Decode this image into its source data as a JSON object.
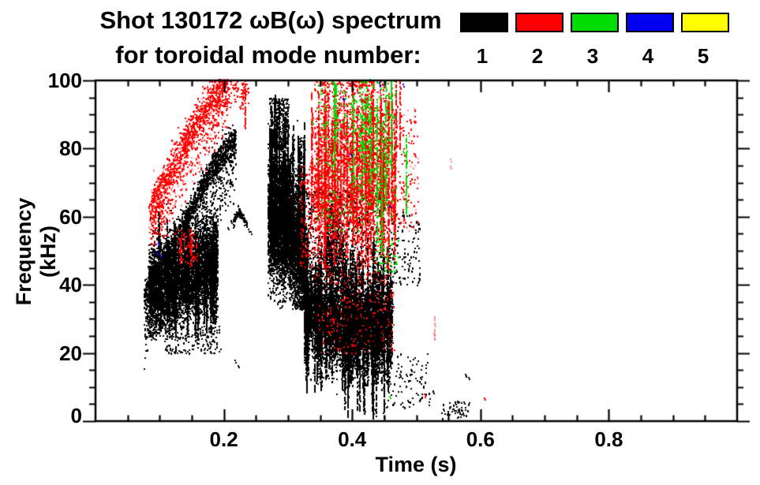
{
  "title": {
    "line1": "Shot 130172 ωB(ω) spectrum",
    "line2": "for toroidal mode number:"
  },
  "legend": {
    "position": "top-right",
    "entries": [
      {
        "label": "1",
        "color": "#000000"
      },
      {
        "label": "2",
        "color": "#ff0000"
      },
      {
        "label": "3",
        "color": "#00dc00"
      },
      {
        "label": "4",
        "color": "#0000f0"
      },
      {
        "label": "5",
        "color": "#ffff00"
      }
    ]
  },
  "chart_data": {
    "type": "scatter",
    "title": "Shot 130172 ωB(ω) spectrum for toroidal mode number: 1 2 3 4 5",
    "xlabel": "Time (s)",
    "ylabel": "Frequency (kHz)",
    "xlim": [
      0,
      1.0
    ],
    "ylim": [
      0,
      100
    ],
    "grid": false,
    "xticks": {
      "major": [
        0.2,
        0.4,
        0.6,
        0.8
      ],
      "labels": [
        "0.2",
        "0.4",
        "0.6",
        "0.8"
      ],
      "minor_step": 0.05
    },
    "yticks": {
      "major": [
        0,
        20,
        40,
        60,
        80,
        100
      ],
      "labels": [
        "0",
        "20",
        "40",
        "60",
        "80",
        "100"
      ],
      "minor_step": 5
    },
    "units": {
      "x": "s",
      "y": "kHz"
    },
    "series": [
      {
        "name": "n=1",
        "mode": 1,
        "color": "#000000",
        "clusters": [
          {
            "type": "chirp",
            "path": [
              [
                0.075,
                37
              ],
              [
                0.1,
                44
              ],
              [
                0.13,
                55
              ],
              [
                0.16,
                67
              ],
              [
                0.19,
                77
              ],
              [
                0.218,
                83
              ]
            ],
            "n": 2200,
            "sigma": 2.2,
            "tail_prob": 0.3,
            "tail_drop": 16
          },
          {
            "type": "band",
            "path": [
              [
                0.082,
                38
              ],
              [
                0.13,
                42
              ],
              [
                0.19,
                47
              ]
            ],
            "sigma": 6.5,
            "n": 4500,
            "fmin": 24
          },
          {
            "type": "streaks",
            "t": [
              0.095,
              0.19
            ],
            "count": 40,
            "ftop": [
              48,
              62
            ],
            "fbot": [
              24,
              36
            ]
          },
          {
            "type": "box",
            "t": [
              0.105,
              0.195
            ],
            "f": [
              20,
              28
            ],
            "n": 150
          },
          {
            "type": "chirp",
            "path": [
              [
                0.214,
                58.5
              ],
              [
                0.222,
                62
              ],
              [
                0.235,
                58
              ]
            ],
            "n": 90,
            "sigma": 0.7,
            "tail_prob": 0,
            "tail_drop": 0
          },
          {
            "type": "points",
            "pts": [
              [
                0.238,
                56.5
              ],
              [
                0.241,
                55.8
              ],
              [
                0.205,
                57
              ],
              [
                0.21,
                59
              ],
              [
                0.217,
                18
              ],
              [
                0.222,
                16.5
              ]
            ]
          },
          {
            "type": "band",
            "path": [
              [
                0.268,
                60
              ],
              [
                0.3,
                57
              ],
              [
                0.325,
                47
              ]
            ],
            "sigma": 9,
            "n": 5000,
            "fmin": 33
          },
          {
            "type": "streaks",
            "t": [
              0.27,
              0.325
            ],
            "count": 45,
            "ftop": [
              72,
              97
            ],
            "fbot": [
              45,
              60
            ]
          },
          {
            "type": "box",
            "t": [
              0.27,
              0.3
            ],
            "f": [
              80,
              95
            ],
            "n": 250
          },
          {
            "type": "band",
            "path": [
              [
                0.325,
                34
              ],
              [
                0.36,
                30
              ],
              [
                0.4,
                27
              ],
              [
                0.44,
                29
              ],
              [
                0.462,
                28
              ]
            ],
            "sigma": 6,
            "n": 5200,
            "fmin": 6
          },
          {
            "type": "streaks",
            "t": [
              0.325,
              0.462
            ],
            "count": 80,
            "ftop": [
              35,
              56
            ],
            "fbot": [
              8,
              26
            ]
          },
          {
            "type": "streaks",
            "t": [
              0.385,
              0.452
            ],
            "count": 14,
            "ftop": [
              25,
              42
            ],
            "fbot": [
              0.8,
              4
            ]
          },
          {
            "type": "box",
            "t": [
              0.325,
              0.45
            ],
            "f": [
              40,
              68
            ],
            "n": 650
          },
          {
            "type": "band",
            "path": [
              [
                0.355,
                52
              ],
              [
                0.385,
                50
              ]
            ],
            "sigma": 7,
            "n": 450,
            "fmin": 35
          },
          {
            "type": "box",
            "t": [
              0.455,
              0.505
            ],
            "f": [
              40,
              62
            ],
            "n": 130
          },
          {
            "type": "box",
            "t": [
              0.45,
              0.52
            ],
            "f": [
              4,
              20
            ],
            "n": 90
          },
          {
            "type": "box",
            "t": [
              0.538,
              0.585
            ],
            "f": [
              1,
              6
            ],
            "n": 55
          },
          {
            "type": "points",
            "pts": [
              [
                0.576,
                14
              ],
              [
                0.58,
                13
              ],
              [
                0.565,
                3.5
              ],
              [
                0.525,
                9
              ],
              [
                0.505,
                13
              ],
              [
                0.466,
                61.5
              ]
            ]
          }
        ]
      },
      {
        "name": "n=2",
        "mode": 2,
        "color": "#ff0000",
        "clusters": [
          {
            "type": "chirp",
            "path": [
              [
                0.085,
                63
              ],
              [
                0.115,
                73
              ],
              [
                0.145,
                84
              ],
              [
                0.175,
                93
              ],
              [
                0.205,
                100
              ]
            ],
            "n": 1400,
            "sigma": 3,
            "tail_prob": 0.28,
            "tail_drop": 13,
            "faint": 0.25
          },
          {
            "type": "box",
            "t": [
              0.082,
              0.105
            ],
            "f": [
              55,
              66
            ],
            "n": 70,
            "faint": 0.3
          },
          {
            "type": "vlines",
            "lines": [
              [
                0.2325,
                86,
                100
              ],
              [
                0.229,
                92,
                97
              ]
            ]
          },
          {
            "type": "box",
            "t": [
              0.195,
              0.238
            ],
            "f": [
              92,
              100
            ],
            "n": 80
          },
          {
            "type": "streaks",
            "t": [
              0.128,
              0.155
            ],
            "count": 4,
            "ftop": [
              52,
              57
            ],
            "fbot": [
              46,
              49
            ]
          },
          {
            "type": "box",
            "t": [
              0.128,
              0.158
            ],
            "f": [
              46,
              57
            ],
            "n": 60
          },
          {
            "type": "band",
            "path": [
              [
                0.34,
                72
              ],
              [
                0.38,
                76
              ],
              [
                0.42,
                78
              ],
              [
                0.455,
                72
              ]
            ],
            "sigma": 14,
            "n": 2600,
            "fmin": 25,
            "fmax": 100,
            "faint": 0.22
          },
          {
            "type": "streaks",
            "t": [
              0.335,
              0.468
            ],
            "count": 55,
            "ftop": [
              70,
              100
            ],
            "fbot": [
              45,
              70
            ],
            "faint": 0.25
          },
          {
            "type": "vlines",
            "lines": [
              [
                0.4,
                60,
                100
              ],
              [
                0.432,
                55,
                100
              ],
              [
                0.468,
                76,
                100
              ],
              [
                0.4735,
                80,
                100
              ],
              [
                0.444,
                50,
                96
              ]
            ]
          },
          {
            "type": "box",
            "t": [
              0.345,
              0.465
            ],
            "f": [
              20,
              45
            ],
            "n": 200,
            "faint": 0.3
          },
          {
            "type": "box",
            "t": [
              0.47,
              0.502
            ],
            "f": [
              55,
              92
            ],
            "n": 120,
            "faint": 0.3
          },
          {
            "type": "box",
            "t": [
              0.318,
              0.34
            ],
            "f": [
              45,
              75
            ],
            "n": 130
          },
          {
            "type": "vlines",
            "lines": [
              [
                0.528,
                24,
                31
              ]
            ],
            "faint": 1
          },
          {
            "type": "points",
            "pts": [
              [
                0.512,
                8
              ],
              [
                0.605,
                7
              ],
              [
                0.352,
                30.5
              ],
              [
                0.455,
                30
              ]
            ]
          },
          {
            "type": "points",
            "pts": [
              [
                0.552,
                77
              ],
              [
                0.552,
                75
              ]
            ],
            "faint": 1
          }
        ]
      },
      {
        "name": "n=3",
        "mode": 3,
        "color": "#00dc00",
        "clusters": [
          {
            "type": "vlines",
            "lines": [
              [
                0.371,
                74,
                100
              ],
              [
                0.374,
                82,
                100
              ],
              [
                0.401,
                68,
                96
              ],
              [
                0.438,
                55,
                95
              ],
              [
                0.445,
                50,
                88
              ],
              [
                0.452,
                62,
                100
              ],
              [
                0.46,
                75,
                100
              ],
              [
                0.484,
                61,
                84
              ],
              [
                0.428,
                70,
                92
              ]
            ]
          },
          {
            "type": "box",
            "t": [
              0.345,
              0.468
            ],
            "f": [
              55,
              100
            ],
            "n": 330,
            "faint": 0.25
          },
          {
            "type": "band",
            "path": [
              [
                0.41,
                85
              ],
              [
                0.43,
                85
              ]
            ],
            "sigma": 9,
            "n": 160
          },
          {
            "type": "box",
            "t": [
              0.435,
              0.472
            ],
            "f": [
              44,
              54
            ],
            "n": 45
          },
          {
            "type": "points",
            "pts": [
              [
                0.458,
                7.5
              ],
              [
                0.478,
                79.5
              ],
              [
                0.467,
                47
              ],
              [
                0.35,
                97
              ],
              [
                0.355,
                92
              ],
              [
                0.337,
                88
              ]
            ]
          }
        ]
      },
      {
        "name": "n=4",
        "mode": 4,
        "color": "#0000f0",
        "clusters": [
          {
            "type": "points",
            "pts": [
              [
                0.094,
                50
              ],
              [
                0.097,
                52.5
              ],
              [
                0.1,
                49
              ],
              [
                0.385,
                95
              ],
              [
                0.442,
                99.5
              ],
              [
                0.457,
                63.5
              ],
              [
                0.397,
                78.5
              ],
              [
                0.478,
                99
              ]
            ]
          }
        ]
      },
      {
        "name": "n=5",
        "mode": 5,
        "color": "#ffff00",
        "clusters": []
      }
    ]
  }
}
